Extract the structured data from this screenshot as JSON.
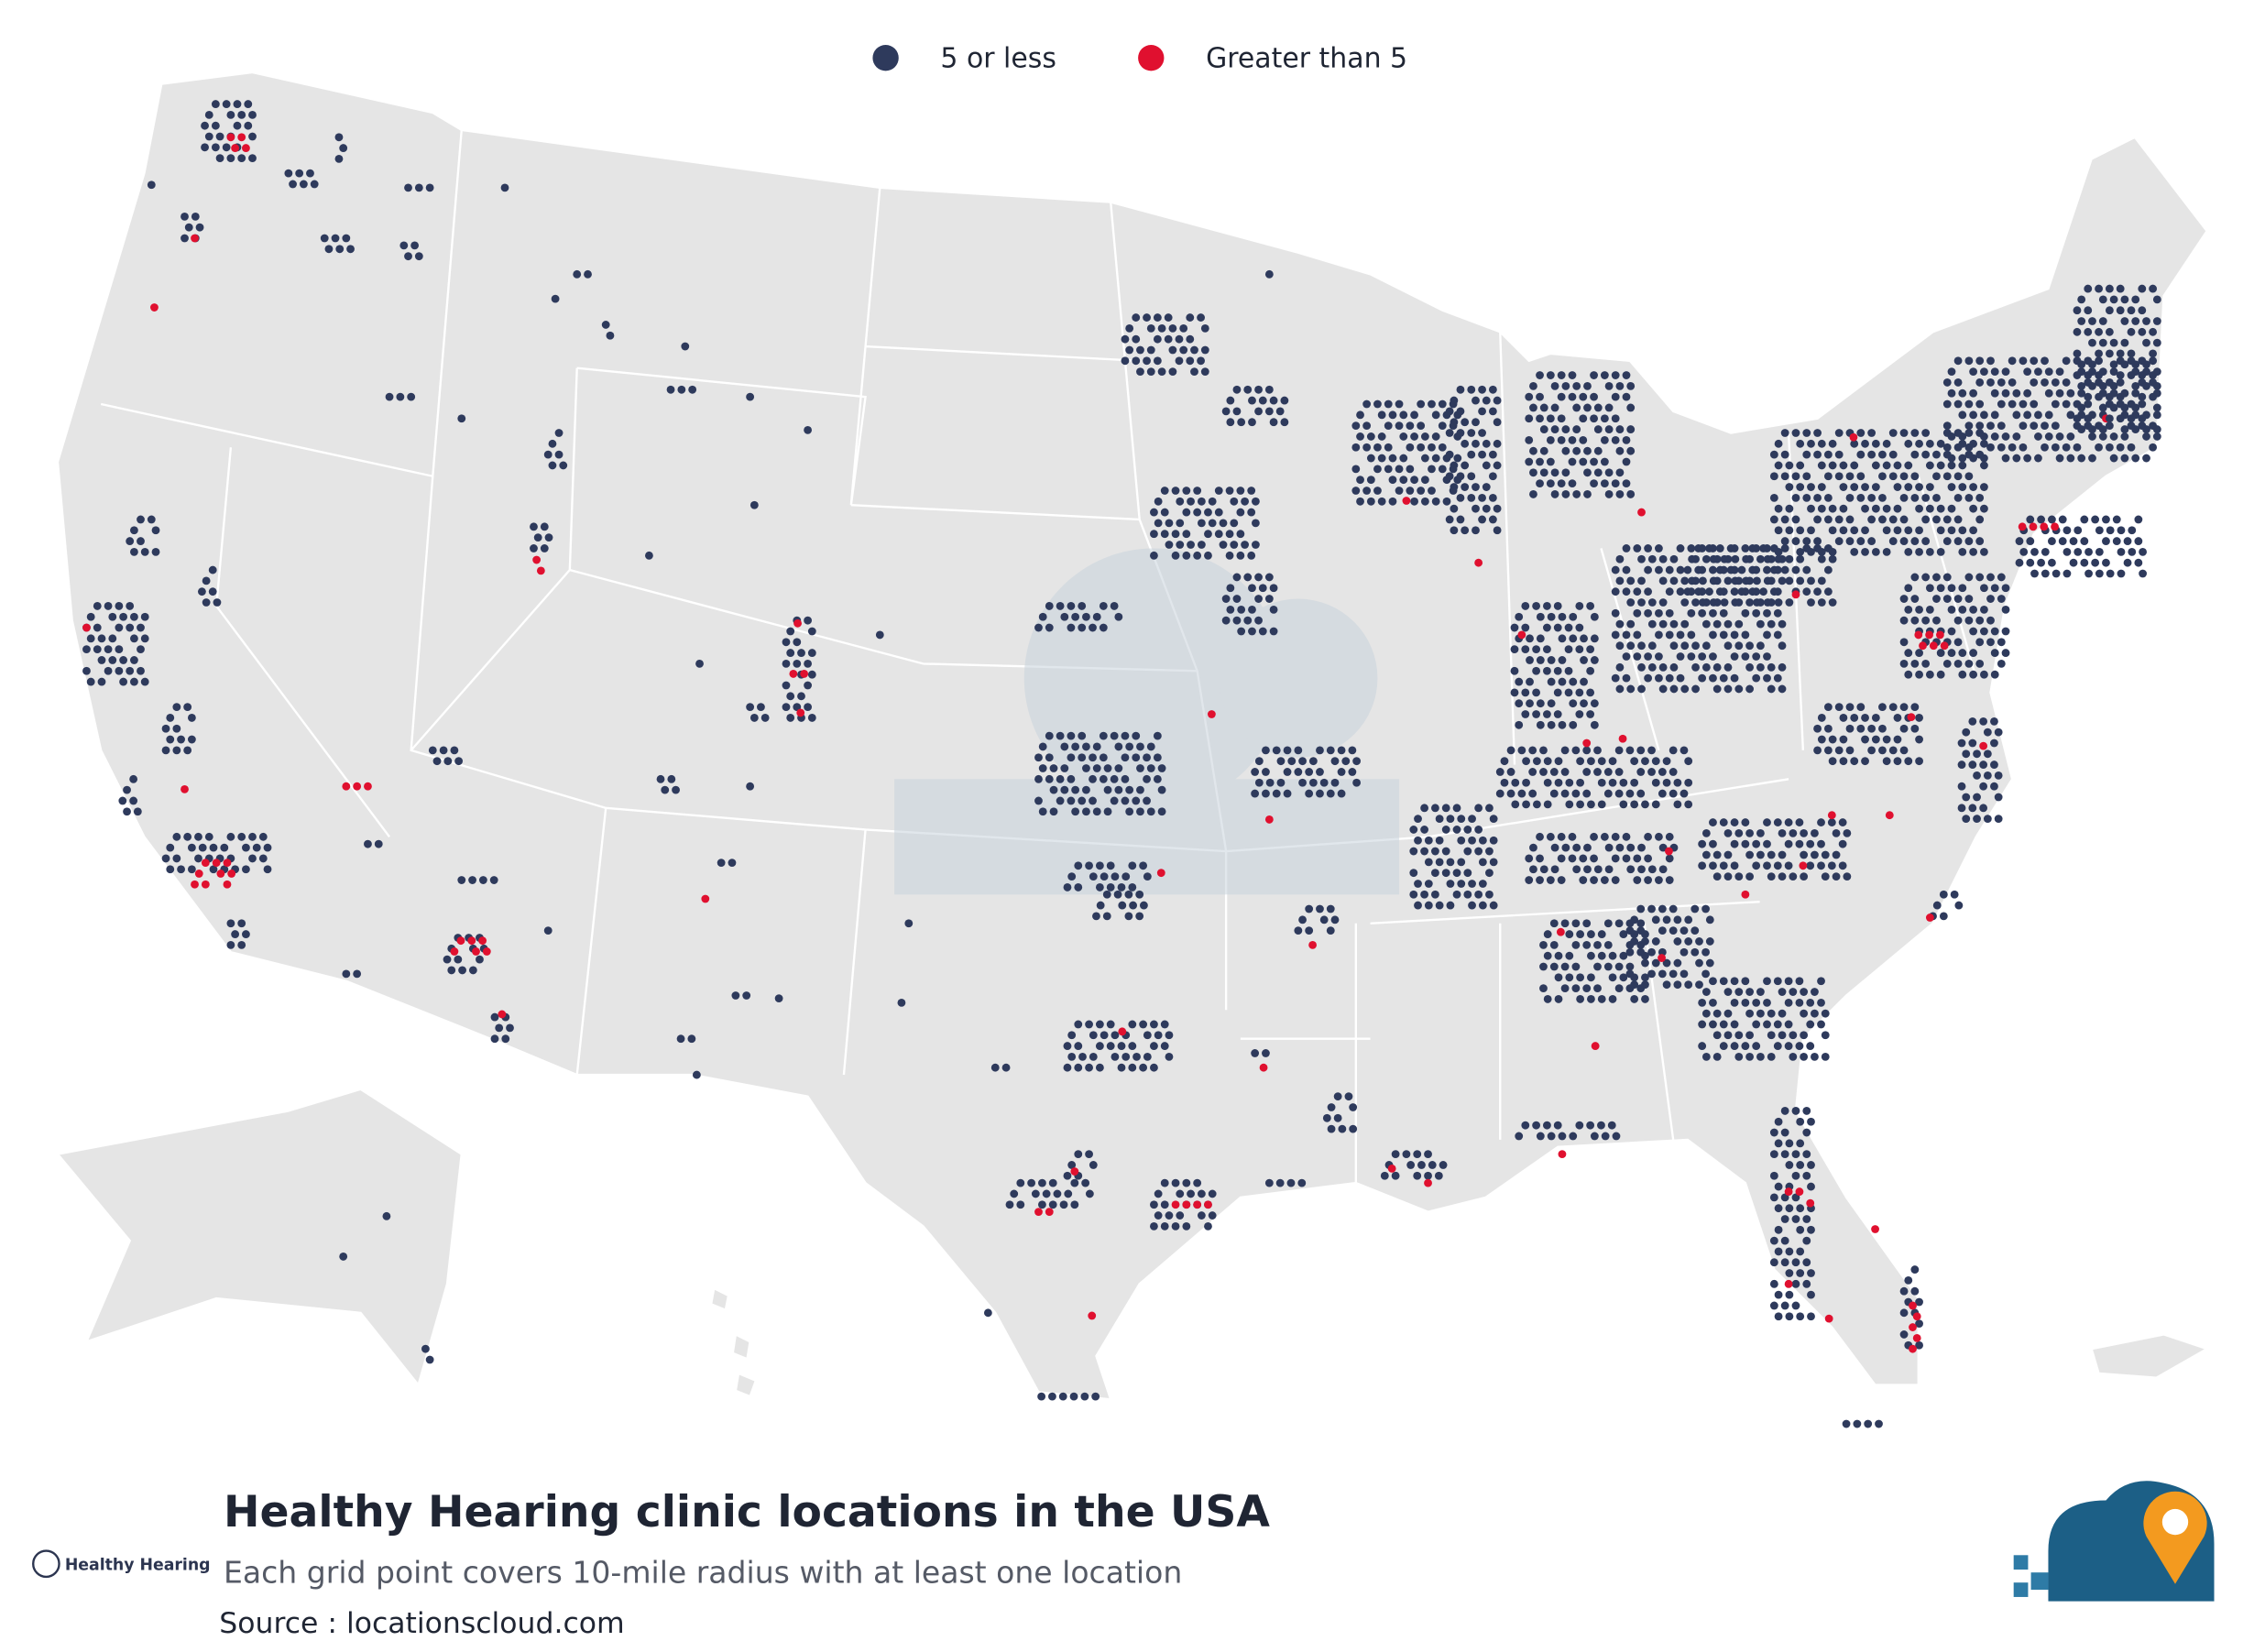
{
  "legend": {
    "items": [
      {
        "label": "5 or less",
        "color": "#2e3a5c"
      },
      {
        "label": "Greater than 5",
        "color": "#e0102f"
      }
    ]
  },
  "footer": {
    "title": "Healthy Hearing clinic locations in the USA",
    "subtitle": "Each grid point covers 10-mile radius with at least one location",
    "source": "Source : locationscloud.com",
    "brand": "Healthy Hearing"
  }
}
